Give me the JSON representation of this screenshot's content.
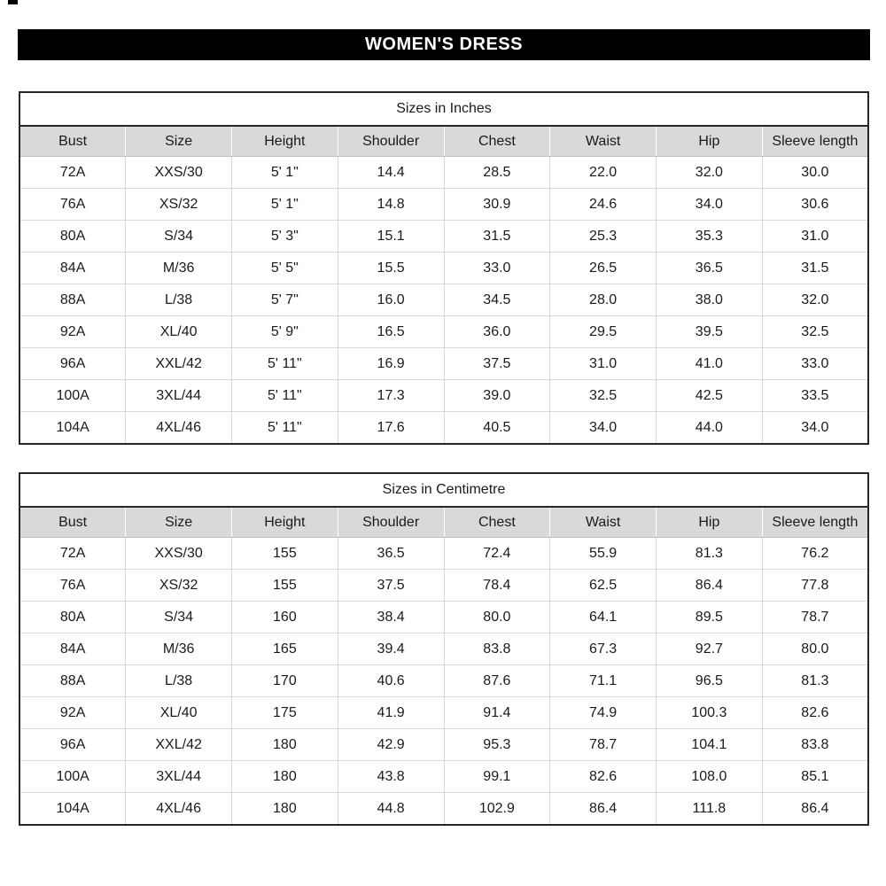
{
  "banner": {
    "title": "WOMEN'S DRESS",
    "background": "#000000",
    "text_color": "#ffffff"
  },
  "columns": [
    "Bust",
    "Size",
    "Height",
    "Shoulder",
    "Chest",
    "Waist",
    "Hip",
    "Sleeve length"
  ],
  "tables": [
    {
      "title": "Sizes in Inches",
      "rows": [
        [
          "72A",
          "XXS/30",
          "5' 1\"",
          "14.4",
          "28.5",
          "22.0",
          "32.0",
          "30.0"
        ],
        [
          "76A",
          "XS/32",
          "5' 1\"",
          "14.8",
          "30.9",
          "24.6",
          "34.0",
          "30.6"
        ],
        [
          "80A",
          "S/34",
          "5' 3\"",
          "15.1",
          "31.5",
          "25.3",
          "35.3",
          "31.0"
        ],
        [
          "84A",
          "M/36",
          "5' 5\"",
          "15.5",
          "33.0",
          "26.5",
          "36.5",
          "31.5"
        ],
        [
          "88A",
          "L/38",
          "5' 7\"",
          "16.0",
          "34.5",
          "28.0",
          "38.0",
          "32.0"
        ],
        [
          "92A",
          "XL/40",
          "5' 9\"",
          "16.5",
          "36.0",
          "29.5",
          "39.5",
          "32.5"
        ],
        [
          "96A",
          "XXL/42",
          "5' 11\"",
          "16.9",
          "37.5",
          "31.0",
          "41.0",
          "33.0"
        ],
        [
          "100A",
          "3XL/44",
          "5' 11\"",
          "17.3",
          "39.0",
          "32.5",
          "42.5",
          "33.5"
        ],
        [
          "104A",
          "4XL/46",
          "5' 11\"",
          "17.6",
          "40.5",
          "34.0",
          "44.0",
          "34.0"
        ]
      ]
    },
    {
      "title": "Sizes in Centimetre",
      "rows": [
        [
          "72A",
          "XXS/30",
          "155",
          "36.5",
          "72.4",
          "55.9",
          "81.3",
          "76.2"
        ],
        [
          "76A",
          "XS/32",
          "155",
          "37.5",
          "78.4",
          "62.5",
          "86.4",
          "77.8"
        ],
        [
          "80A",
          "S/34",
          "160",
          "38.4",
          "80.0",
          "64.1",
          "89.5",
          "78.7"
        ],
        [
          "84A",
          "M/36",
          "165",
          "39.4",
          "83.8",
          "67.3",
          "92.7",
          "80.0"
        ],
        [
          "88A",
          "L/38",
          "170",
          "40.6",
          "87.6",
          "71.1",
          "96.5",
          "81.3"
        ],
        [
          "92A",
          "XL/40",
          "175",
          "41.9",
          "91.4",
          "74.9",
          "100.3",
          "82.6"
        ],
        [
          "96A",
          "XXL/42",
          "180",
          "42.9",
          "95.3",
          "78.7",
          "104.1",
          "83.8"
        ],
        [
          "100A",
          "3XL/44",
          "180",
          "43.8",
          "99.1",
          "82.6",
          "108.0",
          "85.1"
        ],
        [
          "104A",
          "4XL/46",
          "180",
          "44.8",
          "102.9",
          "86.4",
          "111.8",
          "86.4"
        ]
      ]
    }
  ],
  "colors": {
    "header_row_bg": "#d9d9d9",
    "grid_line": "#d9d9d9",
    "outer_border": "#262626",
    "text": "#1a1a1a"
  }
}
